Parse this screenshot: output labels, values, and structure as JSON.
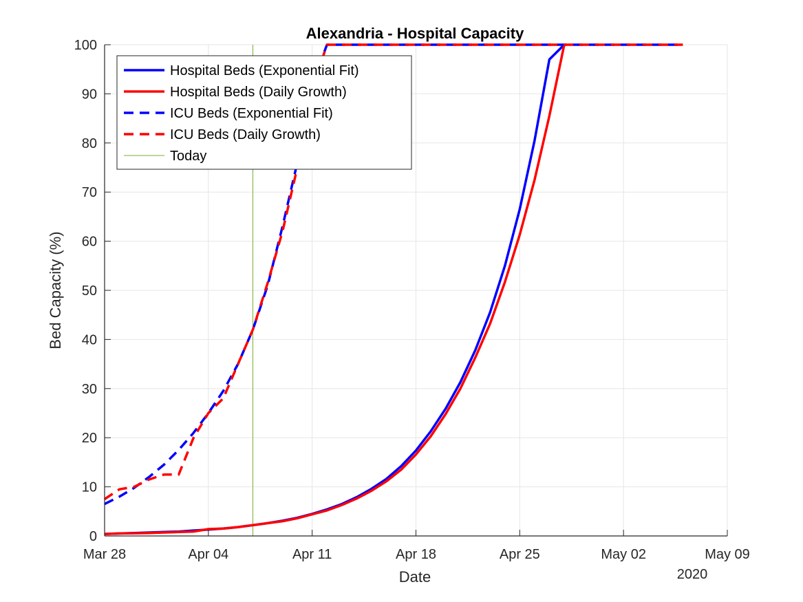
{
  "chart_data": {
    "type": "line",
    "title": "Alexandria - Hospital Capacity",
    "xlabel": "Date",
    "ylabel": "Bed Capacity (%)",
    "x_year_label": "2020",
    "x_tick_labels": [
      "Mar 28",
      "Apr 04",
      "Apr 11",
      "Apr 18",
      "Apr 25",
      "May 02",
      "May 09"
    ],
    "x_ticks_day": [
      0,
      7,
      14,
      21,
      28,
      35,
      42
    ],
    "y_ticks": [
      0,
      10,
      20,
      30,
      40,
      50,
      60,
      70,
      80,
      90,
      100
    ],
    "xlim_dates": [
      "2020-03-28",
      "2020-05-09"
    ],
    "ylim": [
      0,
      100
    ],
    "grid": true,
    "legend_position": "top-left",
    "today_date": "2020-04-07",
    "colors": {
      "blue": "#0000ff",
      "red": "#ff0000",
      "today": "#77ac30",
      "grid": "#e6e6e6",
      "axis": "#262626"
    },
    "series": [
      {
        "name": "Hospital Beds (Exponential Fit)",
        "color": "#0000ff",
        "dash": false,
        "x": [
          "2020-03-28",
          "2020-03-29",
          "2020-03-30",
          "2020-03-31",
          "2020-04-01",
          "2020-04-02",
          "2020-04-03",
          "2020-04-04",
          "2020-04-05",
          "2020-04-06",
          "2020-04-07",
          "2020-04-08",
          "2020-04-09",
          "2020-04-10",
          "2020-04-11",
          "2020-04-12",
          "2020-04-13",
          "2020-04-14",
          "2020-04-15",
          "2020-04-16",
          "2020-04-17",
          "2020-04-18",
          "2020-04-19",
          "2020-04-20",
          "2020-04-21",
          "2020-04-22",
          "2020-04-23",
          "2020-04-24",
          "2020-04-25",
          "2020-04-26",
          "2020-04-27",
          "2020-04-28"
        ],
        "values": [
          0.4,
          0.5,
          0.6,
          0.7,
          0.8,
          0.9,
          1.1,
          1.3,
          1.5,
          1.8,
          2.2,
          2.6,
          3.1,
          3.7,
          4.5,
          5.4,
          6.5,
          7.9,
          9.6,
          11.6,
          14.2,
          17.4,
          21.3,
          25.9,
          31.3,
          37.8,
          45.5,
          55.0,
          66.5,
          80.5,
          97.0,
          100
        ]
      },
      {
        "name": "Hospital Beds (Daily Growth)",
        "color": "#ff0000",
        "dash": false,
        "x": [
          "2020-03-28",
          "2020-03-29",
          "2020-03-30",
          "2020-03-31",
          "2020-04-01",
          "2020-04-02",
          "2020-04-03",
          "2020-04-04",
          "2020-04-05",
          "2020-04-06",
          "2020-04-07",
          "2020-04-08",
          "2020-04-09",
          "2020-04-10",
          "2020-04-11",
          "2020-04-12",
          "2020-04-13",
          "2020-04-14",
          "2020-04-15",
          "2020-04-16",
          "2020-04-17",
          "2020-04-18",
          "2020-04-19",
          "2020-04-20",
          "2020-04-21",
          "2020-04-22",
          "2020-04-23",
          "2020-04-24",
          "2020-04-25",
          "2020-04-26",
          "2020-04-27",
          "2020-04-28"
        ],
        "values": [
          0.4,
          0.5,
          0.55,
          0.6,
          0.7,
          0.8,
          0.9,
          1.4,
          1.5,
          1.8,
          2.2,
          2.6,
          3.0,
          3.6,
          4.4,
          5.2,
          6.3,
          7.6,
          9.2,
          11.1,
          13.5,
          16.6,
          20.3,
          24.8,
          30.0,
          36.3,
          43.2,
          51.7,
          61.3,
          72.5,
          85.5,
          100
        ]
      },
      {
        "name": "ICU Beds (Exponential Fit)",
        "color": "#0000ff",
        "dash": true,
        "x": [
          "2020-03-28",
          "2020-03-29",
          "2020-03-30",
          "2020-03-31",
          "2020-04-01",
          "2020-04-02",
          "2020-04-03",
          "2020-04-04",
          "2020-04-05",
          "2020-04-06",
          "2020-04-07",
          "2020-04-08",
          "2020-04-09",
          "2020-04-10",
          "2020-04-11",
          "2020-04-12",
          "2020-04-13",
          "2020-05-06"
        ],
        "values": [
          6.5,
          8.0,
          9.8,
          12.0,
          14.5,
          17.5,
          21.0,
          25.0,
          29.5,
          35.0,
          42.0,
          51.0,
          63.0,
          76.0,
          92.0,
          100,
          100,
          100
        ]
      },
      {
        "name": "ICU Beds (Daily Growth)",
        "color": "#ff0000",
        "dash": true,
        "x": [
          "2020-03-28",
          "2020-03-29",
          "2020-03-30",
          "2020-03-31",
          "2020-04-01",
          "2020-04-02",
          "2020-04-03",
          "2020-04-04",
          "2020-04-05",
          "2020-04-06",
          "2020-04-07",
          "2020-04-08",
          "2020-04-09",
          "2020-04-10",
          "2020-04-11",
          "2020-04-12",
          "2020-04-13",
          "2020-05-06"
        ],
        "values": [
          7.5,
          9.5,
          10.0,
          11.5,
          12.5,
          12.5,
          20.0,
          25.0,
          28.0,
          35.0,
          42.0,
          51.5,
          62.0,
          75.0,
          91.0,
          100,
          100,
          100
        ]
      }
    ],
    "today_label": "Today"
  }
}
